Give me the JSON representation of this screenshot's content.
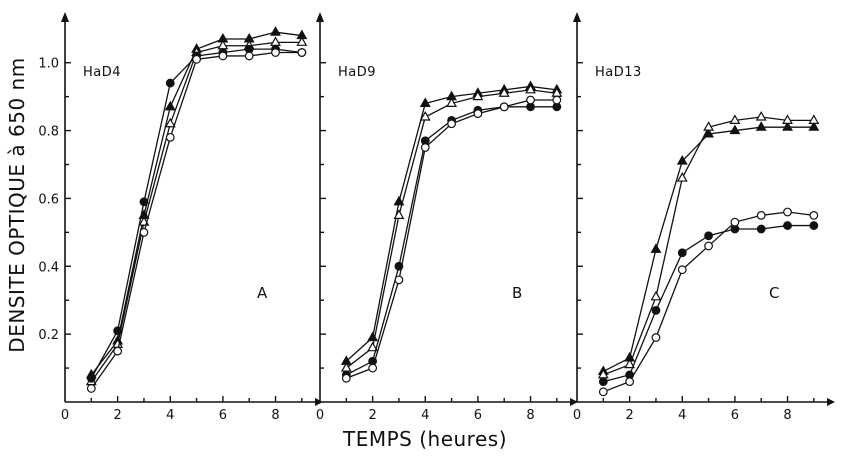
{
  "ylabel": "DENSITE OPTIQUE à 650 nm",
  "xlabel": "TEMPS (heures)",
  "styles": {
    "s1": {
      "marker": "filled-triangle",
      "color": "#111111"
    },
    "s2": {
      "marker": "open-triangle",
      "color": "#111111"
    },
    "s3": {
      "marker": "filled-circle",
      "color": "#111111"
    },
    "s4": {
      "marker": "open-circle",
      "color": "#111111"
    }
  },
  "chart_data": [
    {
      "type": "line",
      "title": "HaD4",
      "letter": "A",
      "xlim": [
        0,
        9.5
      ],
      "ylim": [
        0,
        1.12
      ],
      "xticks": [
        "0",
        "2",
        "4",
        "6",
        "8"
      ],
      "yticks": [
        "0.2",
        "0.4",
        "0.6",
        "0.8",
        "1.0"
      ],
      "x": [
        1,
        2,
        3,
        4,
        5,
        6,
        7,
        8,
        9
      ],
      "series": [
        {
          "style": "s1",
          "values": [
            0.08,
            0.18,
            0.55,
            0.87,
            1.04,
            1.07,
            1.07,
            1.09,
            1.08
          ]
        },
        {
          "style": "s2",
          "values": [
            0.06,
            0.17,
            0.53,
            0.82,
            1.03,
            1.05,
            1.05,
            1.06,
            1.06
          ]
        },
        {
          "style": "s3",
          "values": [
            0.07,
            0.21,
            0.59,
            0.94,
            1.02,
            1.03,
            1.04,
            1.04,
            1.03
          ]
        },
        {
          "style": "s4",
          "values": [
            0.04,
            0.15,
            0.5,
            0.78,
            1.01,
            1.02,
            1.02,
            1.03,
            1.03
          ]
        }
      ]
    },
    {
      "type": "line",
      "title": "HaD9",
      "letter": "B",
      "xlim": [
        0,
        9.5
      ],
      "ylim": [
        0,
        1.12
      ],
      "xticks": [
        "0",
        "2",
        "4",
        "6",
        "8"
      ],
      "yticks": [
        "0.2",
        "0.4",
        "0.6",
        "0.8",
        "1.0"
      ],
      "x": [
        1,
        2,
        3,
        4,
        5,
        6,
        7,
        8,
        9
      ],
      "series": [
        {
          "style": "s1",
          "values": [
            0.12,
            0.19,
            0.59,
            0.88,
            0.9,
            0.91,
            0.92,
            0.93,
            0.92
          ]
        },
        {
          "style": "s2",
          "values": [
            0.1,
            0.16,
            0.55,
            0.84,
            0.88,
            0.9,
            0.91,
            0.92,
            0.91
          ]
        },
        {
          "style": "s3",
          "values": [
            0.08,
            0.12,
            0.4,
            0.77,
            0.83,
            0.86,
            0.87,
            0.87,
            0.87
          ]
        },
        {
          "style": "s4",
          "values": [
            0.07,
            0.1,
            0.36,
            0.75,
            0.82,
            0.85,
            0.87,
            0.89,
            0.89
          ]
        }
      ]
    },
    {
      "type": "line",
      "title": "HaD13",
      "letter": "C",
      "xlim": [
        0,
        9.5
      ],
      "ylim": [
        0,
        1.12
      ],
      "xticks": [
        "0",
        "2",
        "4",
        "6",
        "8"
      ],
      "yticks": [
        "0.2",
        "0.4",
        "0.6",
        "0.8",
        "1.0"
      ],
      "x": [
        1,
        2,
        3,
        4,
        5,
        6,
        7,
        8,
        9
      ],
      "series": [
        {
          "style": "s1",
          "values": [
            0.09,
            0.13,
            0.45,
            0.71,
            0.79,
            0.8,
            0.81,
            0.81,
            0.81
          ]
        },
        {
          "style": "s2",
          "values": [
            0.08,
            0.11,
            0.31,
            0.66,
            0.81,
            0.83,
            0.84,
            0.83,
            0.83
          ]
        },
        {
          "style": "s3",
          "values": [
            0.06,
            0.08,
            0.27,
            0.44,
            0.49,
            0.51,
            0.51,
            0.52,
            0.52
          ]
        },
        {
          "style": "s4",
          "values": [
            0.03,
            0.06,
            0.19,
            0.39,
            0.46,
            0.53,
            0.55,
            0.56,
            0.55
          ]
        }
      ]
    }
  ]
}
